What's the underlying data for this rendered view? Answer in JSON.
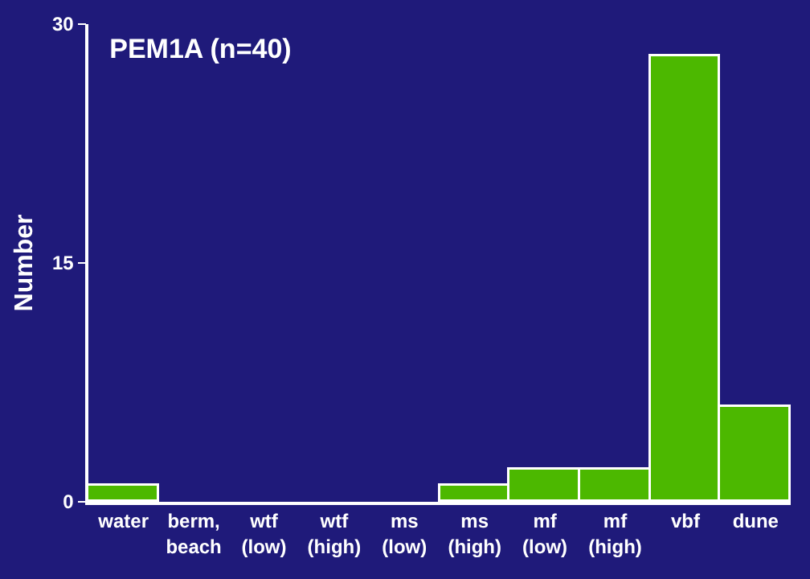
{
  "chart_data": {
    "type": "bar",
    "title": "PEM1A (n=40)",
    "ylabel": "Number",
    "categories": [
      "water",
      "berm,\nbeach",
      "wtf\n(low)",
      "wtf\n(high)",
      "ms\n(low)",
      "ms\n(high)",
      "mf\n(low)",
      "mf\n(high)",
      "vbf",
      "dune"
    ],
    "values": [
      1,
      0,
      0,
      0,
      0,
      1,
      2,
      2,
      28,
      6
    ],
    "color": "#4cb800",
    "ylim": [
      0,
      30
    ],
    "yticks": [
      0,
      15,
      30
    ],
    "grid": false,
    "legend": false
  }
}
